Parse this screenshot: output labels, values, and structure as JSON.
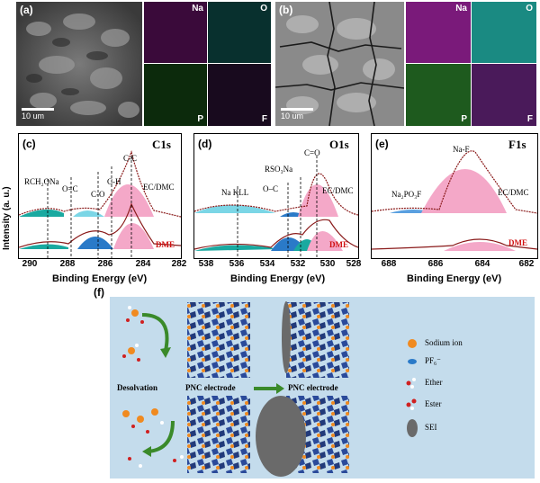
{
  "panel_a": {
    "letter": "(a)",
    "scale_text": "10 um",
    "maps": [
      "Na",
      "O",
      "P",
      "F"
    ]
  },
  "panel_b": {
    "letter": "(b)",
    "scale_text": "10 um",
    "maps": [
      "Na",
      "O",
      "P",
      "F"
    ]
  },
  "map_colors": {
    "Na": "#b020b0",
    "O": "#1aa9a0",
    "P": "#5aa040",
    "F": "#8a3a9a"
  },
  "panel_c": {
    "letter": "(c)",
    "title": "C1s",
    "peaks": [
      "RCH₂ONa",
      "O=C",
      "C-O",
      "C-H",
      "C-C"
    ],
    "top_label": "EC/DMC",
    "bottom_label": "DME",
    "xticks": [
      "290",
      "288",
      "286",
      "284",
      "282"
    ]
  },
  "panel_d": {
    "letter": "(d)",
    "title": "O1s",
    "peaks": [
      "Na KLL",
      "O–C",
      "RSO₃Na",
      "C=O"
    ],
    "top_label": "EC/DMC",
    "bottom_label": "DME",
    "xticks": [
      "538",
      "536",
      "534",
      "532",
      "530",
      "528"
    ]
  },
  "panel_e": {
    "letter": "(e)",
    "title": "F1s",
    "peaks": [
      "Na₂PO₃F",
      "Na-F"
    ],
    "top_label": "EC/DMC",
    "bottom_label": "DME",
    "xticks": [
      "688",
      "686",
      "684",
      "682"
    ]
  },
  "axes": {
    "xlabel": "Binding Energy (eV)",
    "ylabel": "Intensity (a. u.)"
  },
  "panel_f": {
    "letter": "(f)",
    "desolvation": "Desolvation",
    "electrode_left": "PNC electrode",
    "electrode_right": "PNC electrode",
    "legend": {
      "sodium": "Sodium ion",
      "pf6": "PF₆⁻",
      "ether": "Ether",
      "ester": "Ester",
      "sei": "SEI"
    }
  }
}
